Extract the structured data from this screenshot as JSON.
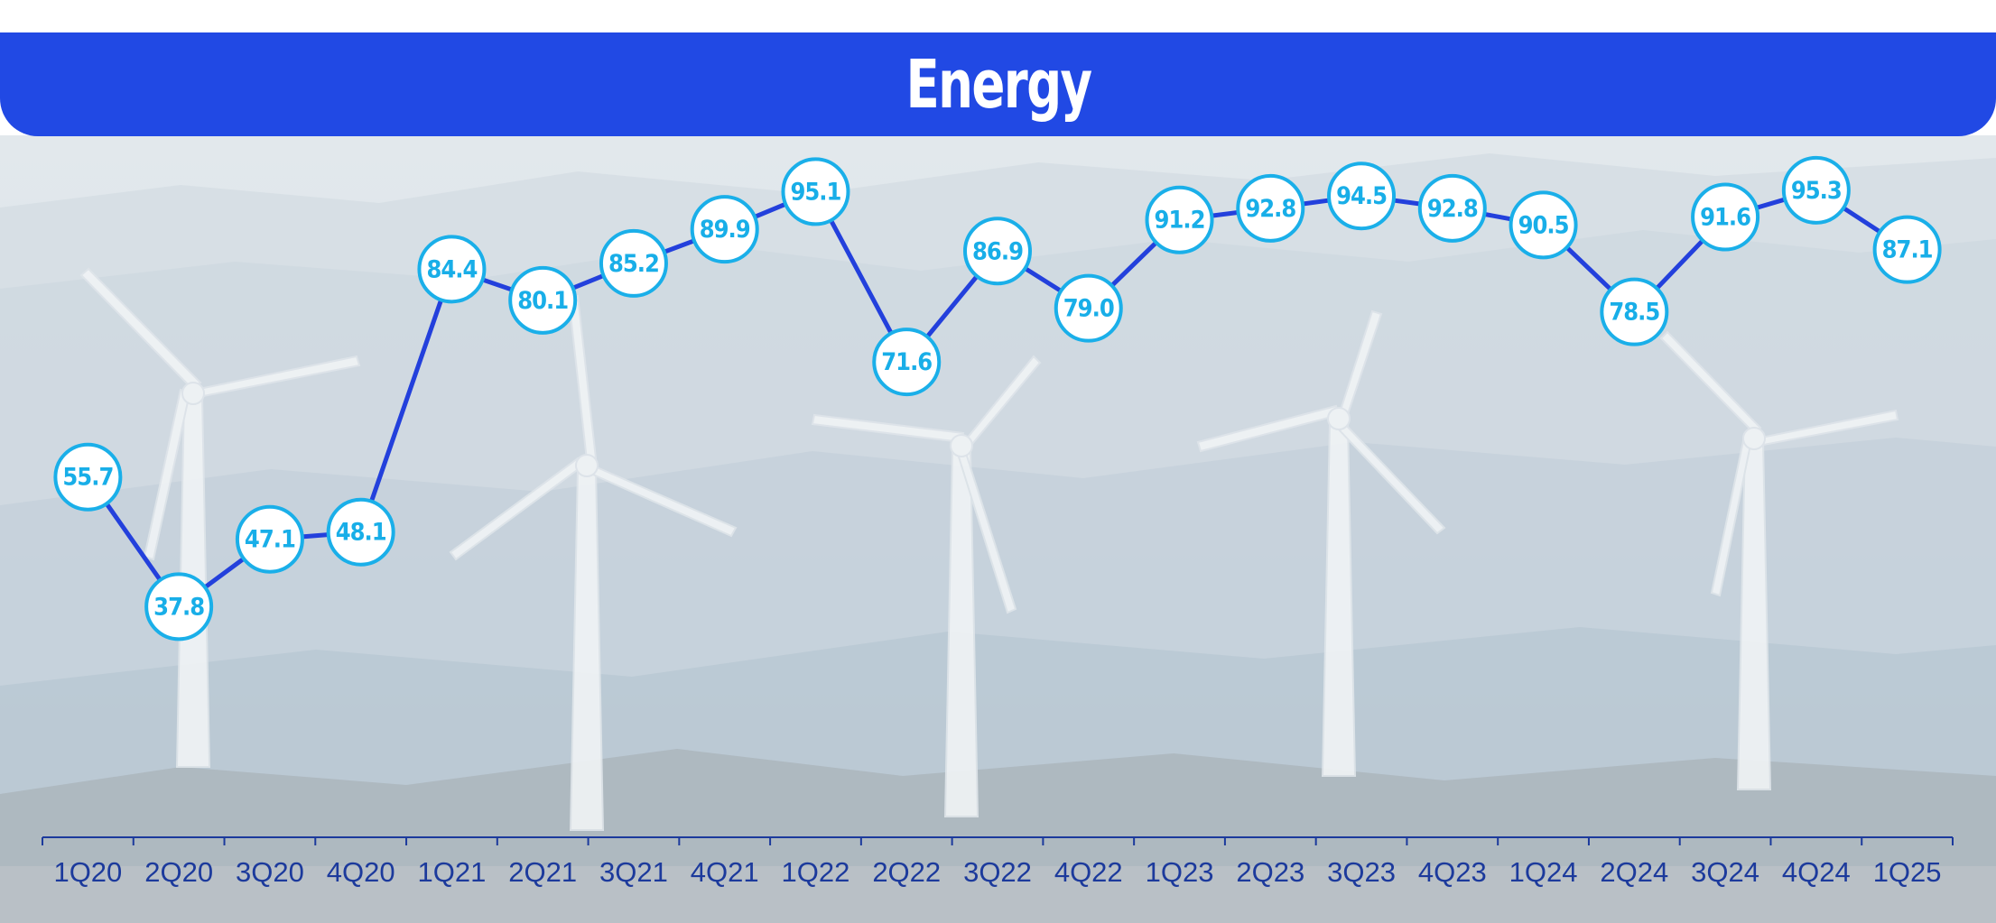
{
  "header": {
    "title": "Energy"
  },
  "colors": {
    "header_bg": "#2149e4",
    "line": "#2340dc",
    "marker_stroke": "#1aafe9",
    "marker_fill": "#ffffff",
    "label": "#18aee8",
    "axis": "#1c3a9c"
  },
  "background": {
    "icon": "wind-turbines-landscape-icon"
  },
  "chart_data": {
    "type": "line",
    "title": "Energy",
    "xlabel": "",
    "ylabel": "",
    "categories": [
      "1Q20",
      "2Q20",
      "3Q20",
      "4Q20",
      "1Q21",
      "2Q21",
      "3Q21",
      "4Q21",
      "1Q22",
      "2Q22",
      "3Q22",
      "4Q22",
      "1Q23",
      "2Q23",
      "3Q23",
      "4Q23",
      "1Q24",
      "2Q24",
      "3Q24",
      "4Q24",
      "1Q25"
    ],
    "series": [
      {
        "values": [
          55.7,
          37.8,
          47.1,
          48.1,
          84.4,
          80.1,
          85.2,
          89.9,
          95.1,
          71.6,
          86.9,
          79.0,
          91.2,
          92.8,
          94.5,
          92.8,
          90.5,
          78.5,
          91.6,
          95.3,
          87.1
        ],
        "labels": [
          "55.7",
          "37.8",
          "47.1",
          "48.1",
          "84.4",
          "80.1",
          "85.2",
          "89.9",
          "95.1",
          "71.6",
          "86.9",
          "79.0",
          "91.2",
          "92.8",
          "94.5",
          "92.8",
          "90.5",
          "78.5",
          "91.6",
          "95.3",
          "87.1"
        ]
      }
    ],
    "grid": false,
    "legend": "none",
    "data_labels": true
  }
}
